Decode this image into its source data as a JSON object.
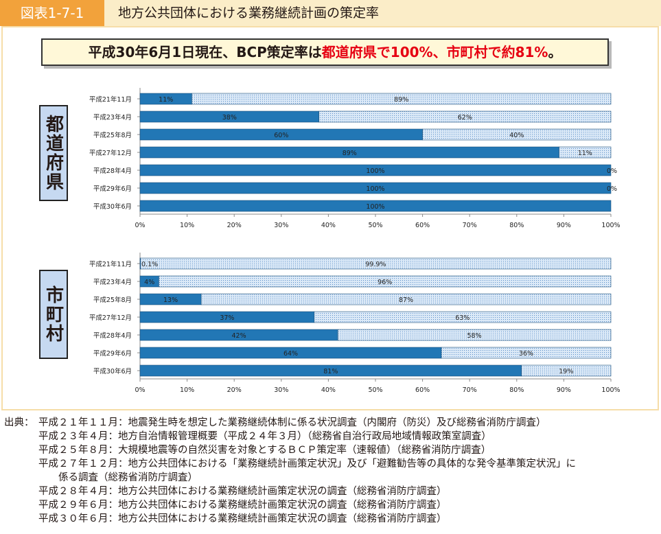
{
  "figure": {
    "label": "図表1-7-1",
    "title": "地方公共団体における業務継続計画の策定率"
  },
  "headline": {
    "part1": "平成30年6月1日現在、BCP策定率は",
    "part2": "都道府県で100%、市町村で約81%",
    "part3": "。"
  },
  "colors": {
    "filled": "#2277b5",
    "remaining": "#dbe9f7",
    "remaining_dots": "#5b8fc9",
    "header_bg": "#fbedc8",
    "label_bg": "#f2a23b",
    "group_label_bg": "#c6d9f1",
    "headline_red": "#e60012"
  },
  "chart_data": [
    {
      "type": "bar",
      "orientation": "horizontal",
      "stacked": true,
      "group_label": "都道府県",
      "categories": [
        "平成21年11月",
        "平成23年4月",
        "平成25年8月",
        "平成27年12月",
        "平成28年4月",
        "平成29年6月",
        "平成30年6月"
      ],
      "series": [
        {
          "values": [
            11,
            38,
            60,
            89,
            100,
            100,
            100
          ],
          "labels": [
            "11%",
            "38%",
            "60%",
            "89%",
            "100%",
            "100%",
            "100%"
          ]
        },
        {
          "values": [
            89,
            62,
            40,
            11,
            0,
            0,
            0
          ],
          "labels": [
            "89%",
            "62%",
            "40%",
            "11%",
            "0%",
            "0%",
            ""
          ]
        }
      ],
      "xticks": [
        "0%",
        "10%",
        "20%",
        "30%",
        "40%",
        "50%",
        "60%",
        "70%",
        "80%",
        "90%",
        "100%"
      ],
      "xlim": [
        0,
        100
      ]
    },
    {
      "type": "bar",
      "orientation": "horizontal",
      "stacked": true,
      "group_label": "市町村",
      "categories": [
        "平成21年11月",
        "平成23年4月",
        "平成25年8月",
        "平成27年12月",
        "平成28年4月",
        "平成29年6月",
        "平成30年6月"
      ],
      "series": [
        {
          "values": [
            0.1,
            4,
            13,
            37,
            42,
            64,
            81
          ],
          "labels": [
            "0.1%",
            "4%",
            "13%",
            "37%",
            "42%",
            "64%",
            "81%"
          ]
        },
        {
          "values": [
            99.9,
            96,
            87,
            63,
            58,
            36,
            19
          ],
          "labels": [
            "99.9%",
            "96%",
            "87%",
            "63%",
            "58%",
            "36%",
            "19%"
          ]
        }
      ],
      "xticks": [
        "0%",
        "10%",
        "20%",
        "30%",
        "40%",
        "50%",
        "60%",
        "70%",
        "80%",
        "90%",
        "100%"
      ],
      "xlim": [
        0,
        100
      ]
    }
  ],
  "sources": {
    "prefix": "出典：",
    "lines": [
      "平成２１年１１月：地震発生時を想定した業務継続体制に係る状況調査（内閣府（防災）及び総務省消防庁調査）",
      "平成２３年４月：地方自治情報管理概要（平成２４年３月）（総務省自治行政局地域情報政策室調査）",
      "平成２５年８月：大規模地震等の自然災害を対象とするＢＣＰ策定率（速報値）（総務省消防庁調査）",
      "平成２７年１２月：地方公共団体における「業務継続計画策定状況」及び「避難勧告等の具体的な発令基準策定状況」に",
      "　　係る調査（総務省消防庁調査）",
      "平成２８年４月：地方公共団体における業務継続計画策定状況の調査（総務省消防庁調査）",
      "平成２９年６月：地方公共団体における業務継続計画策定状況の調査（総務省消防庁調査）",
      "平成３０年６月：地方公共団体における業務継続計画策定状況の調査（総務省消防庁調査）"
    ]
  }
}
